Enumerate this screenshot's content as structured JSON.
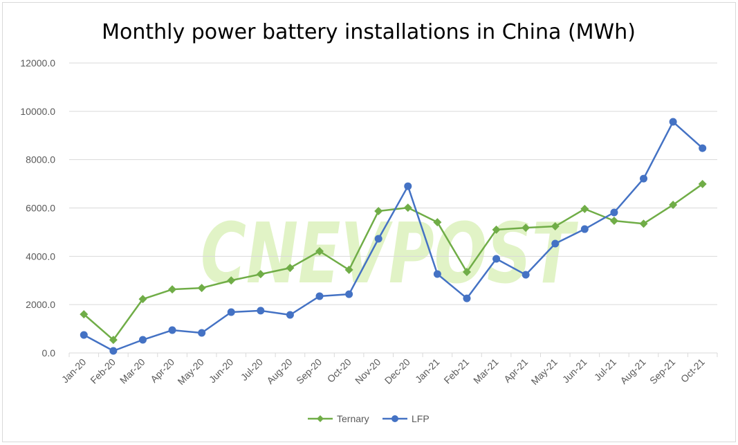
{
  "chart_data": {
    "type": "line",
    "title": "Monthly power battery installations in China (MWh)",
    "watermark": "CNEVPOST",
    "categories": [
      "Jan-20",
      "Feb-20",
      "Mar-20",
      "Apr-20",
      "May-20",
      "Jun-20",
      "Jul-20",
      "Aug-20",
      "Sep-20",
      "Oct-20",
      "Nov-20",
      "Dec-20",
      "Jan-21",
      "Feb-21",
      "Mar-21",
      "Apr-21",
      "May-21",
      "Jun-21",
      "Jul-21",
      "Aug-21",
      "Sep-21",
      "Oct-21"
    ],
    "yticks": [
      "0.0",
      "2000.0",
      "4000.0",
      "6000.0",
      "8000.0",
      "10000.0",
      "12000.0"
    ],
    "ylim": [
      0,
      12000
    ],
    "grid": true,
    "legend_position": "bottom",
    "series": [
      {
        "name": "Ternary",
        "color": "#70ad47",
        "marker": "diamond",
        "values": [
          1600,
          540,
          2230,
          2630,
          2690,
          3000,
          3260,
          3520,
          4210,
          3440,
          5870,
          6010,
          5410,
          3350,
          5100,
          5180,
          5240,
          5960,
          5470,
          5350,
          6130,
          6990
        ]
      },
      {
        "name": "LFP",
        "color": "#4472c4",
        "marker": "circle",
        "values": [
          745,
          86,
          544,
          945,
          830,
          1690,
          1750,
          1575,
          2350,
          2430,
          4725,
          6900,
          3265,
          2260,
          3895,
          3235,
          4525,
          5125,
          5815,
          7215,
          9565,
          8475
        ]
      }
    ]
  }
}
